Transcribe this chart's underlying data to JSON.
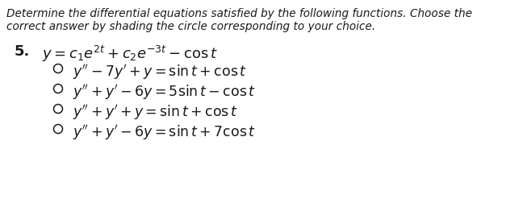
{
  "bg_color": "#ffffff",
  "header_line1": "Determine the differential equations satisfied by the following functions. Choose the",
  "header_line2": "correct answer by shading the circle corresponding to your choice.",
  "question_number": "5.",
  "main_eq": "$y = c_1e^{2t} + c_2e^{-3t} - \\cos t$",
  "choices": [
    "$y'' - 7y' + y = \\sin t + \\cos t$",
    "$y'' + y' - 6y = 5\\sin t - \\cos t$",
    "$y'' + y' + y = \\sin t + \\cos t$",
    "$y'' + y' - 6y = \\sin t + 7\\cos t$"
  ],
  "header_fontsize": 9.8,
  "main_eq_fontsize": 13.0,
  "choice_fontsize": 12.5,
  "text_color": "#1a1a1a"
}
